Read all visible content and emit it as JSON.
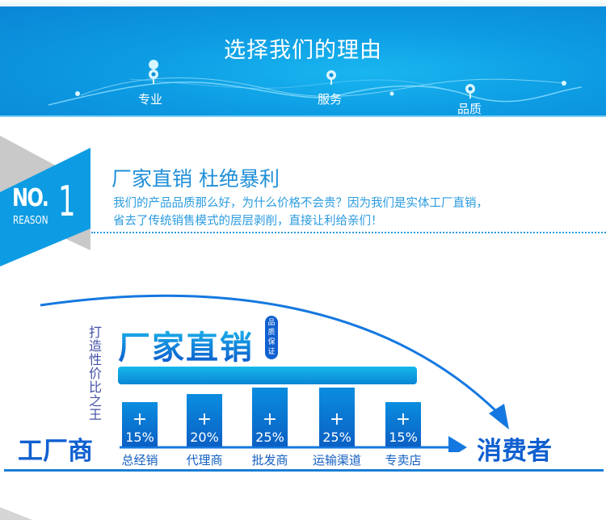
{
  "banner": {
    "title": "选择我们的理由",
    "points": [
      "专业",
      "服务",
      "品质"
    ]
  },
  "reason": {
    "badge_no": "NO.",
    "badge_num": "1",
    "badge_word": "REASON",
    "title": "厂家直销 杜绝暴利",
    "lines": [
      "我们的产品品质那么好，为什么价格不会贵？因为我们是实体工厂直销，",
      "省去了传统销售模式的层层剥削，直接让利给亲们！"
    ]
  },
  "diagram": {
    "slogan_vertical": "打造性价比之王",
    "headline": "厂家直销",
    "badge": "品质保证",
    "start": "工厂商",
    "end": "消费者",
    "stages": [
      {
        "label": "总经销",
        "markup": "15%"
      },
      {
        "label": "代理商",
        "markup": "20%"
      },
      {
        "label": "批发商",
        "markup": "25%"
      },
      {
        "label": "运输渠道",
        "markup": "25%"
      },
      {
        "label": "专卖店",
        "markup": "15%"
      }
    ],
    "plus": "+"
  },
  "colors": {
    "primary": "#0d9ce3",
    "text_blue": "#1f8fd9",
    "dark_blue": "#1060d0"
  }
}
